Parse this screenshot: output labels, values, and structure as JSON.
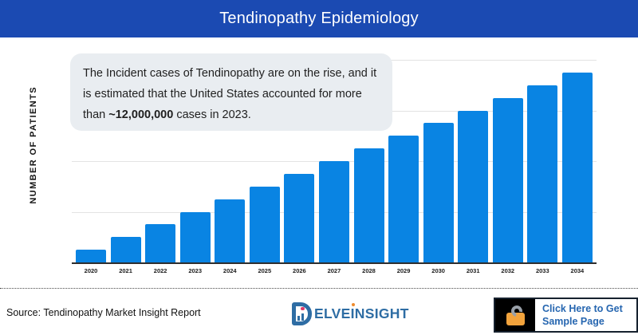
{
  "header": {
    "title": "Tendinopathy Epidemiology"
  },
  "annotation": {
    "text_before": "The Incident cases of Tendinopathy are on the rise, and it is estimated that the United States accounted for more than ",
    "highlight": "~12,000,000",
    "text_after": " cases in 2023."
  },
  "chart_data": {
    "type": "bar",
    "title": "",
    "xlabel": "",
    "ylabel": "NUMBER OF PATIENTS",
    "categories": [
      "2020",
      "2021",
      "2022",
      "2023",
      "2024",
      "2025",
      "2026",
      "2027",
      "2028",
      "2029",
      "2030",
      "2031",
      "2032",
      "2033",
      "2034"
    ],
    "values": [
      3,
      6,
      9,
      12,
      15,
      18,
      21,
      24,
      27,
      30,
      33,
      36,
      39,
      42,
      45
    ],
    "values_unit": "million patients (estimated; y-axis has no tick labels, anchored to ~12,000,000 in 2023 reaching first gridline)",
    "ylim": [
      0,
      48
    ],
    "y_gridlines_at": [
      12,
      24,
      36,
      48
    ],
    "grid": "horizontal",
    "legend": null,
    "bar_color": "#0984e3"
  },
  "footer": {
    "source": "Source: Tendinopathy Market Insight Report",
    "logo": {
      "text_part1": "ELVE",
      "text_i": "I",
      "text_part2": "NSIGHT"
    },
    "cta": {
      "line1": "Click Here to Get",
      "line2": "Sample Page"
    }
  },
  "colors": {
    "header_bg": "#1b4ab2",
    "bar_blue": "#0984e3",
    "annotation_bg": "#e9edf1",
    "logo_blue": "#2e6da4",
    "cta_text": "#2666b0",
    "lock_orange": "#f2a33c"
  }
}
